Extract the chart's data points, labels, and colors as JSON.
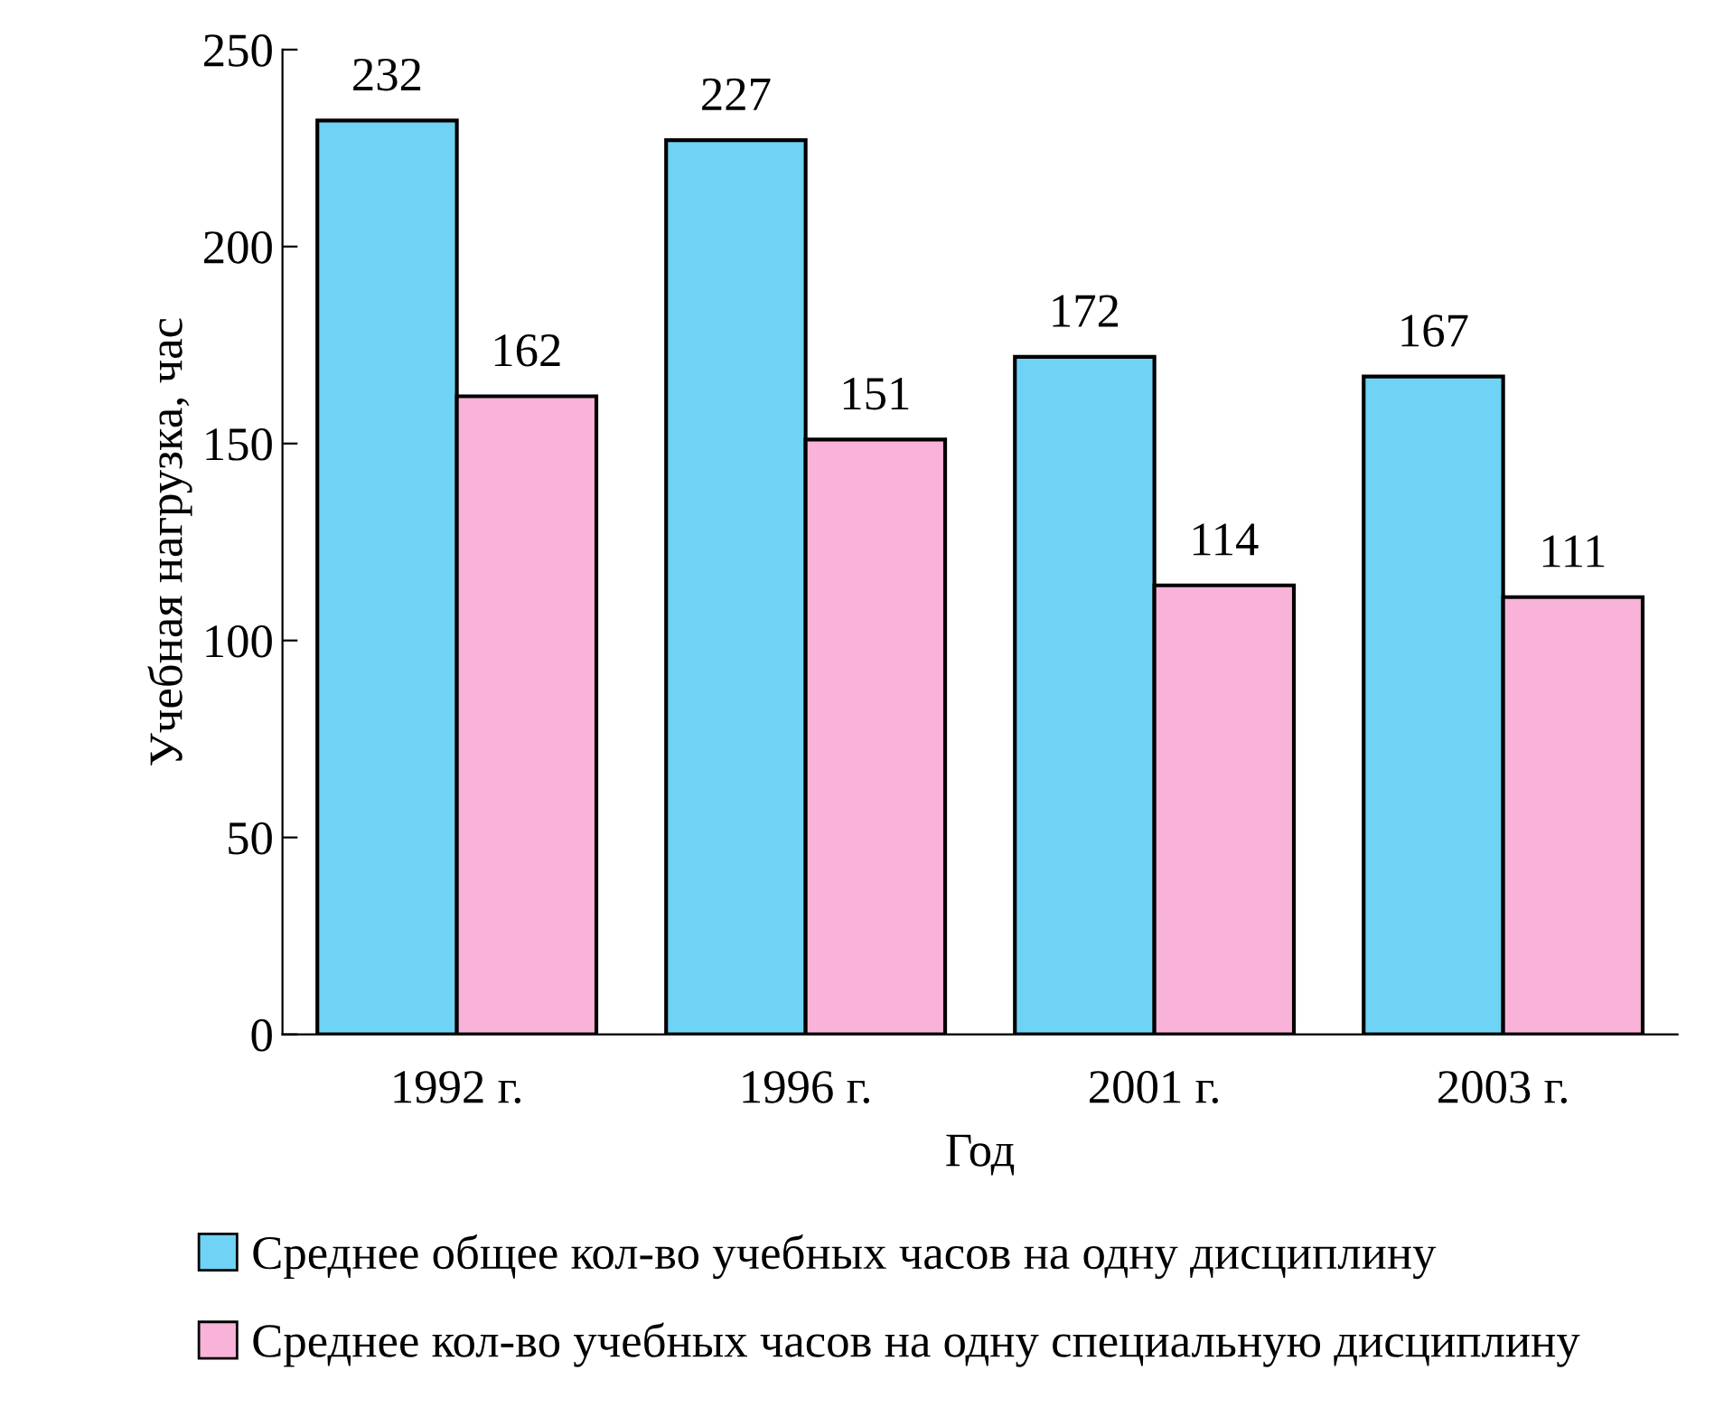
{
  "chart_data": {
    "type": "bar",
    "xlabel": "Год",
    "ylabel": "Учебная нагрузка, час",
    "categories": [
      "1992 г.",
      "1996 г.",
      "2001 г.",
      "2003 г."
    ],
    "series": [
      {
        "name": "Среднее общее кол-во учебных часов на одну дисциплину",
        "color": "#6fd3f5",
        "values": [
          232,
          227,
          172,
          167
        ]
      },
      {
        "name": "Среднее кол-во учебных часов на одну специальную дисциплину",
        "color": "#f9b3d8",
        "values": [
          162,
          151,
          114,
          111
        ]
      }
    ],
    "ylim": [
      0,
      250
    ],
    "yticks": [
      0,
      50,
      100,
      150,
      200,
      250
    ],
    "data_labels": true,
    "grid": false,
    "legend": "bottom"
  }
}
